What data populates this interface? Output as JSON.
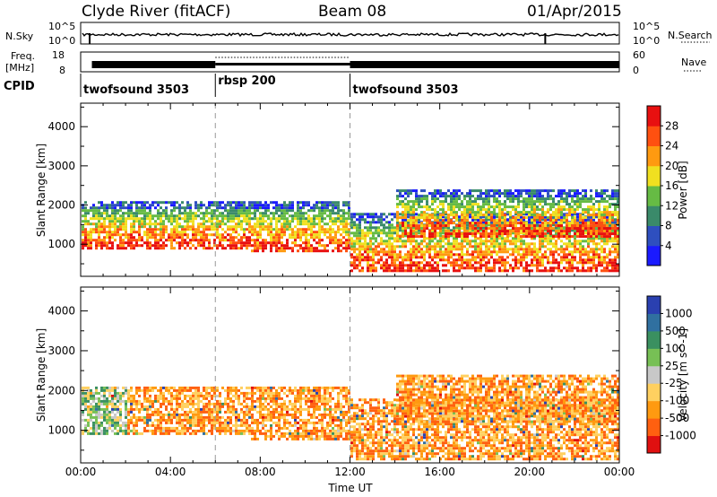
{
  "header": {
    "station": "Clyde River (fitACF)",
    "beam": "Beam 08",
    "date": "01/Apr/2015"
  },
  "noise_panel": {
    "left_label": "N.Sky",
    "left_ticks": [
      "10^5",
      "10^0"
    ],
    "right_label": "N.Search",
    "right_ticks": [
      "10^5",
      "10^0"
    ]
  },
  "freq_panel": {
    "left_label_line1": "Freq.",
    "left_label_line2": "[MHz]",
    "left_ticks": [
      "18",
      "8"
    ],
    "right_label": "Nave",
    "right_ticks": [
      "60",
      "0"
    ]
  },
  "cpid": {
    "label": "CPID",
    "segments": [
      {
        "name": "twofsound 3503",
        "start_hour": 0,
        "end_hour": 6
      },
      {
        "name": "rbsp 200",
        "start_hour": 6,
        "end_hour": 12
      },
      {
        "name": "twofsound 3503",
        "start_hour": 12,
        "end_hour": 24
      }
    ]
  },
  "x_axis": {
    "label": "Time UT",
    "ticks": [
      "00:00",
      "04:00",
      "08:00",
      "12:00",
      "16:00",
      "20:00",
      "00:00"
    ],
    "tick_hours": [
      0,
      4,
      8,
      12,
      16,
      20,
      24
    ],
    "range_hours": [
      0,
      24
    ]
  },
  "power_panel": {
    "ylabel": "Slant Range [km]",
    "yticks": [
      "1000",
      "2000",
      "3000",
      "4000"
    ],
    "ytick_values": [
      1000,
      2000,
      3000,
      4000
    ],
    "ylim": [
      180,
      4600
    ],
    "colorbar_label": "Power [dB]",
    "colorbar_ticks": [
      "4",
      "8",
      "12",
      "16",
      "20",
      "24",
      "28"
    ],
    "colors": [
      "#1a1aff",
      "#2e4fbf",
      "#3a8a6a",
      "#66bb44",
      "#f0e020",
      "#ff9a10",
      "#ff5010",
      "#e81010"
    ]
  },
  "velocity_panel": {
    "ylabel": "Slant Range [km]",
    "yticks": [
      "1000",
      "2000",
      "3000",
      "4000"
    ],
    "ytick_values": [
      1000,
      2000,
      3000,
      4000
    ],
    "ylim": [
      180,
      4600
    ],
    "colorbar_label": "Velocity [m s^-1]",
    "colorbar_ticks": [
      "1000",
      "500",
      "100",
      "25",
      "-25",
      "-100",
      "-500",
      "-1000"
    ],
    "colors": [
      "#2a40b0",
      "#3070a0",
      "#3a9060",
      "#77c055",
      "#c8c8c8",
      "#ffd060",
      "#ff9a10",
      "#ff6010",
      "#e01010"
    ]
  },
  "chart_data": {
    "type": "heatmap",
    "x_range_hours": [
      0,
      24
    ],
    "y_range_km": [
      180,
      4600
    ],
    "scatter_bands": [
      {
        "name": "band-a",
        "hour_start": 0.0,
        "hour_end": 7.5,
        "range_start_km": 900,
        "range_end_km": 2100
      },
      {
        "name": "band-b",
        "hour_start": 7.5,
        "hour_end": 12.0,
        "range_start_km": 800,
        "range_end_km": 2100
      },
      {
        "name": "band-c",
        "hour_start": 12.0,
        "hour_end": 24.0,
        "range_start_km": 300,
        "range_end_km": 1800
      },
      {
        "name": "band-d",
        "hour_start": 14.0,
        "hour_end": 24.0,
        "range_start_km": 1200,
        "range_end_km": 2400
      }
    ]
  }
}
